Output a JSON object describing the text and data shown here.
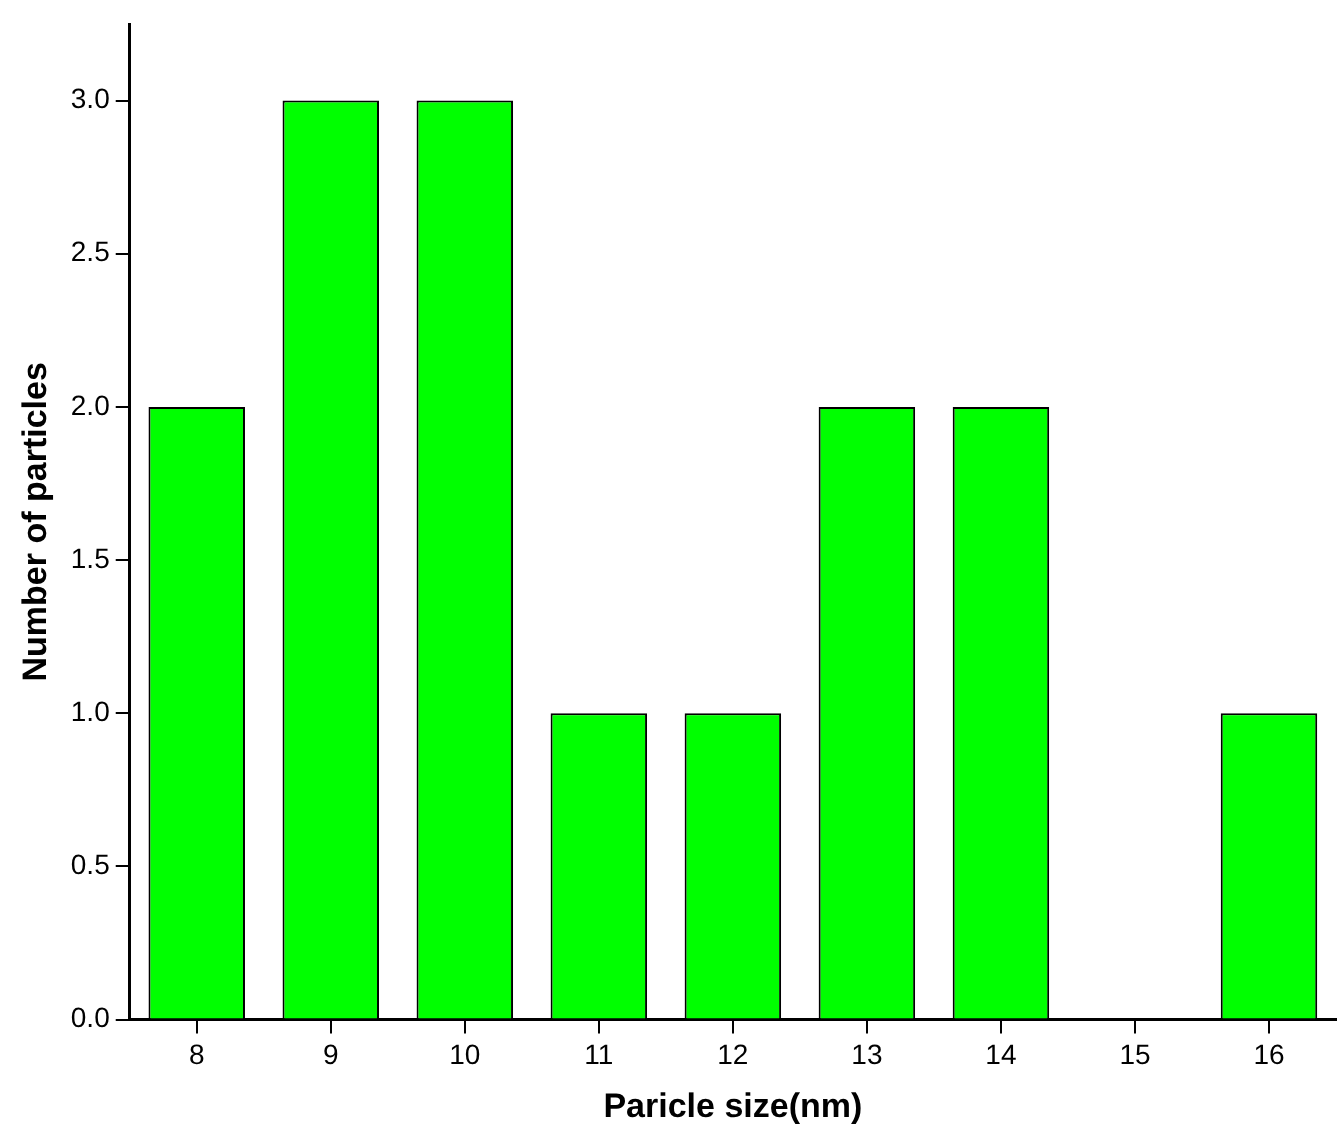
{
  "chart_data": {
    "type": "bar",
    "xlabel": "Paricle size(nm)",
    "ylabel": "Number of particles",
    "categories": [
      "8",
      "9",
      "10",
      "11",
      "12",
      "13",
      "14",
      "15",
      "16"
    ],
    "values": [
      2,
      3,
      3,
      1,
      1,
      2,
      2,
      0,
      1
    ],
    "color": "#00ff00",
    "ylim": [
      0,
      3.25
    ],
    "yticks": [
      {
        "value": 0,
        "label": "0.0"
      },
      {
        "value": 0.5,
        "label": "0.5"
      },
      {
        "value": 1,
        "label": "1.0"
      },
      {
        "value": 1.5,
        "label": "1.5"
      },
      {
        "value": 2,
        "label": "2.0"
      },
      {
        "value": 2.5,
        "label": "2.5"
      },
      {
        "value": 3,
        "label": "3.0"
      }
    ],
    "grid": false,
    "legend": false
  }
}
